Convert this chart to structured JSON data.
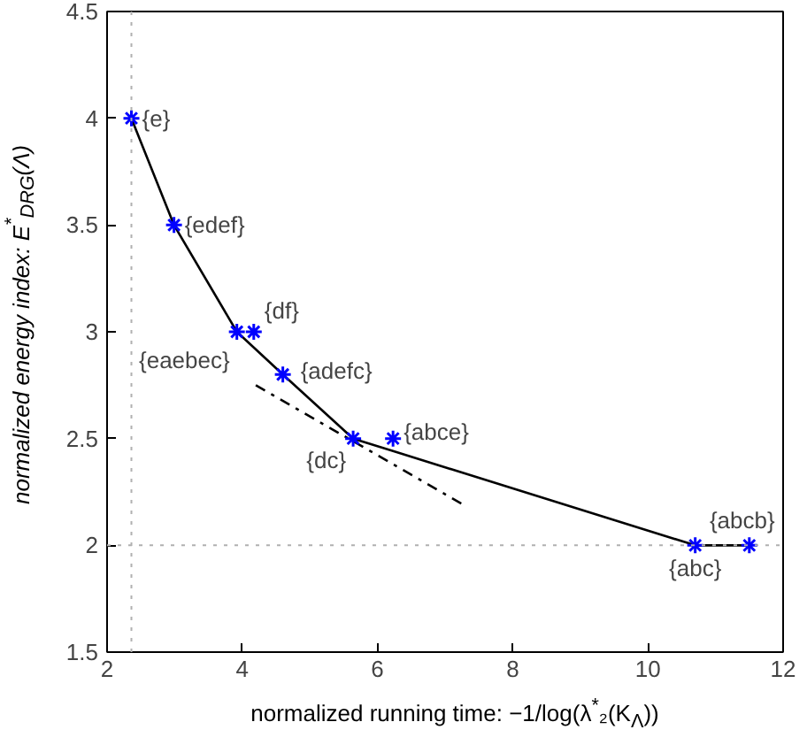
{
  "chart_data": {
    "type": "scatter",
    "xlabel": "normalized running time:   −1/log(λ$^{*}$₂(K$_{Λ}$))",
    "ylabel": "normalized energy index: E$^{*}$$_{DRG}$(Λ)",
    "xlim": [
      2,
      12
    ],
    "ylim": [
      1.5,
      4.5
    ],
    "xticks": [
      2,
      4,
      6,
      8,
      10,
      12
    ],
    "yticks": [
      1.5,
      2,
      2.5,
      3,
      3.5,
      4,
      4.5
    ],
    "grid": false,
    "series": [
      {
        "type": "line",
        "color": "#000000",
        "marker": "none",
        "line_style": "solid",
        "x": [
          2.36,
          2.99,
          3.92,
          4.6,
          5.64,
          10.7,
          11.5
        ],
        "values": [
          4,
          3.5,
          3,
          2.8,
          2.5,
          2,
          2
        ]
      },
      {
        "type": "line",
        "color": "#000000",
        "marker": "none",
        "line_style": "dashdot",
        "x": [
          4.2,
          7.27
        ],
        "values": [
          2.75,
          2.19
        ]
      },
      {
        "color": "#0000ff",
        "marker": "cross",
        "x": [
          2.36,
          2.99,
          3.92,
          4.17,
          4.6,
          5.64,
          6.23,
          10.7,
          11.5
        ],
        "values": [
          4,
          3.5,
          3,
          3,
          2.8,
          2.5,
          2.5,
          2,
          2
        ]
      }
    ],
    "ref_lines": [
      {
        "axis": "x",
        "value": 2.36,
        "color": "#b0b0b0",
        "line_style": "dotted"
      },
      {
        "axis": "y",
        "value": 2,
        "color": "#b0b0b0",
        "line_style": "dotted"
      }
    ],
    "annotations": [
      {
        "text": "{e}",
        "x": 2.36,
        "y": 4
      },
      {
        "text": "{edef}",
        "x": 2.99,
        "y": 3.5
      },
      {
        "text": "{eaebec}",
        "x": 3.92,
        "y": 3
      },
      {
        "text": "{df}",
        "x": 4.17,
        "y": 3
      },
      {
        "text": "{adefc}",
        "x": 4.6,
        "y": 2.8
      },
      {
        "text": "{dc}",
        "x": 5.64,
        "y": 2.5
      },
      {
        "text": "{abce}",
        "x": 6.23,
        "y": 2.5
      },
      {
        "text": "{abc}",
        "x": 10.7,
        "y": 2
      },
      {
        "text": "{abcb}",
        "x": 11.5,
        "y": 2
      }
    ]
  }
}
